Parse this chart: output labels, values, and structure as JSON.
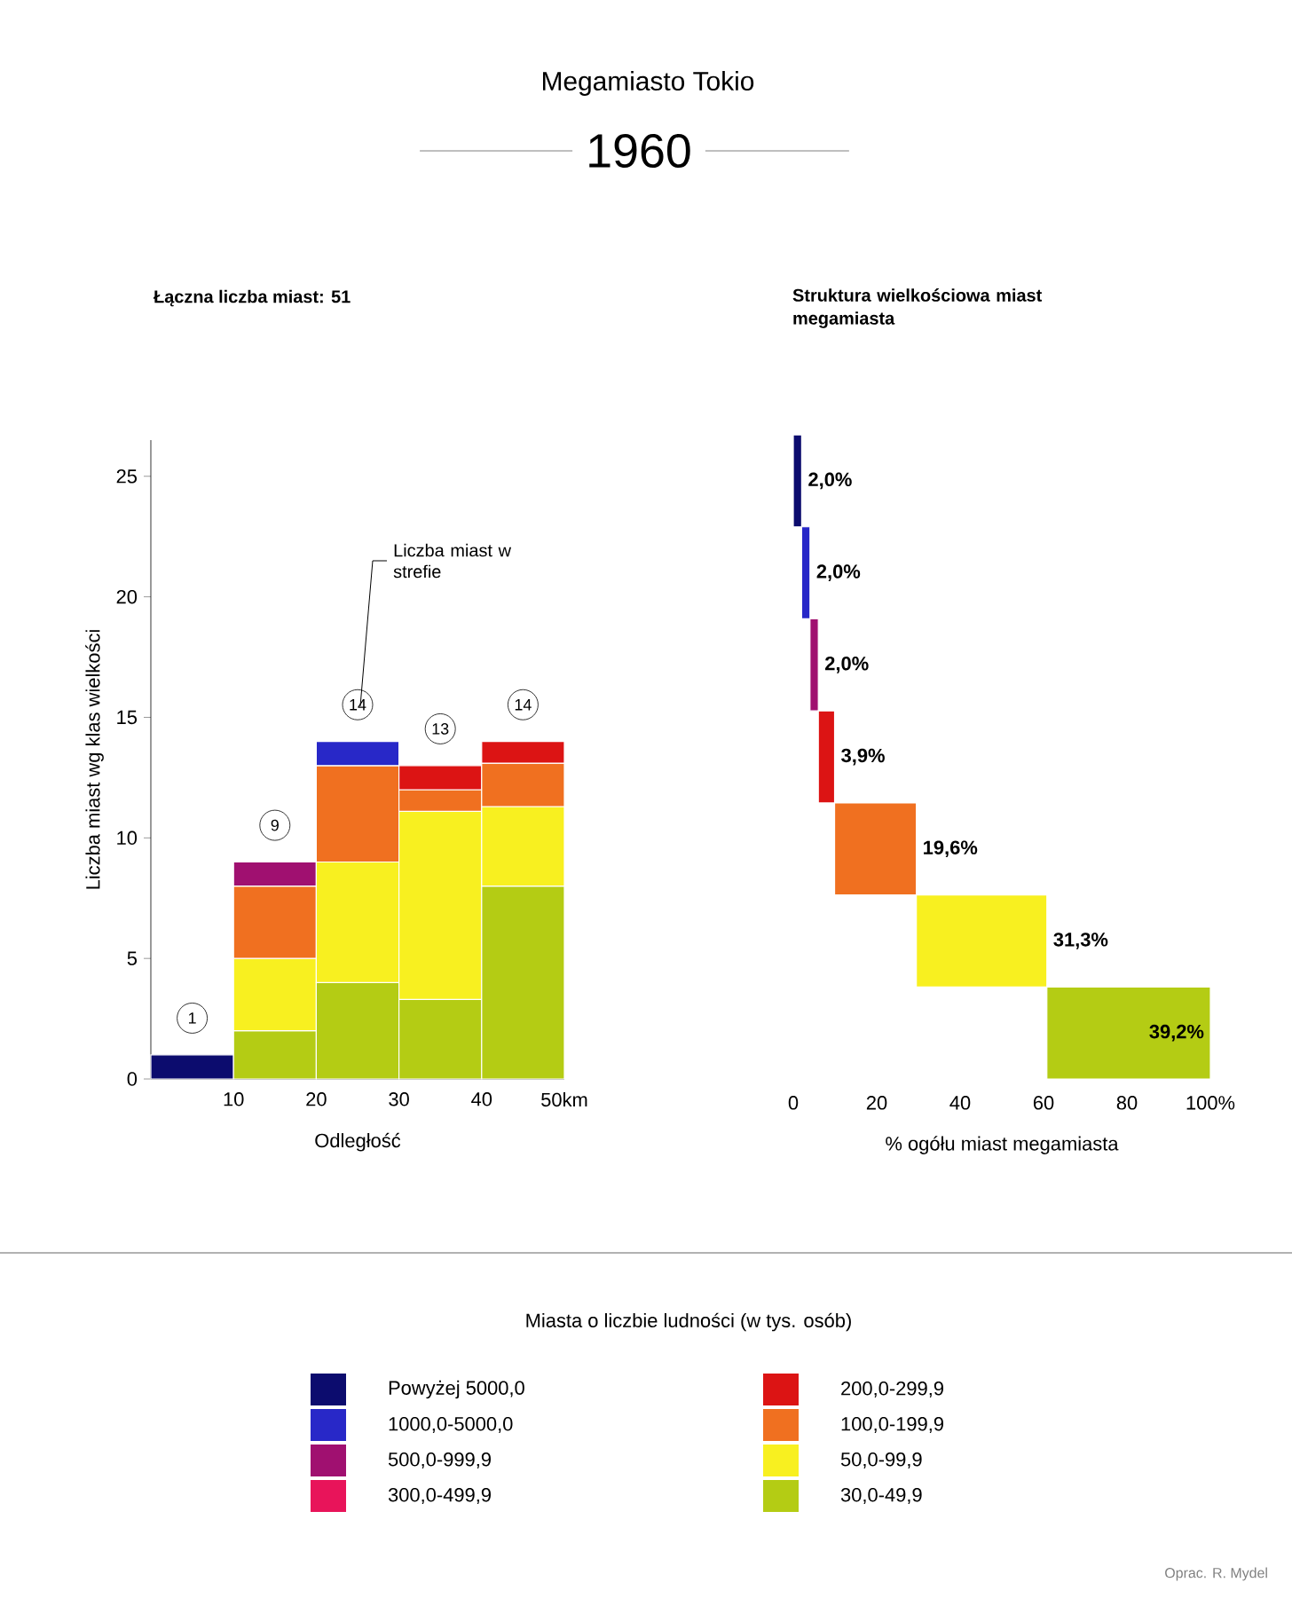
{
  "chart_data": [
    {
      "type": "other",
      "title": "Megamiasto Tokio",
      "subtitle": "1960",
      "annotations": [
        "Oprac. R. Mydel"
      ]
    },
    {
      "type": "bar",
      "title": "Łączna liczba miast: 51",
      "xlabel": "Odległość",
      "ylabel": "Liczba miast wg klas wielkości",
      "legend_title": "Miasta o liczbie ludności (w tys. osób)",
      "annotations": [
        "Liczba miast w strefie"
      ],
      "x": [
        5,
        15,
        25,
        35,
        45
      ],
      "stacked": true,
      "xlim": [
        0,
        50
      ],
      "ylim": [
        0,
        26.5
      ],
      "xticks": [
        10,
        20,
        30,
        40,
        {
          "value": 50,
          "label": "50km"
        }
      ],
      "yticks": [
        0,
        5,
        10,
        15,
        20,
        25
      ],
      "totals": [
        "1",
        "9",
        "14",
        "13",
        "14"
      ],
      "legend": "bottom",
      "series": [
        {
          "name": "30,0-49,9",
          "color": "#b4cc14",
          "values": [
            null,
            2,
            4,
            3.3,
            8
          ]
        },
        {
          "name": "50,0-99,9",
          "color": "#f8f020",
          "values": [
            null,
            3,
            5,
            7.8,
            3.3
          ]
        },
        {
          "name": "100,0-199,9",
          "color": "#f07020",
          "values": [
            null,
            3,
            4,
            0.9,
            1.8
          ]
        },
        {
          "name": "200,0-299,9",
          "color": "#dc1414",
          "values": [
            null,
            null,
            null,
            1,
            0.9
          ]
        },
        {
          "name": "300,0-499,9",
          "color": "#e8145a",
          "values": [
            null,
            null,
            null,
            null,
            null
          ]
        },
        {
          "name": "500,0-999,9",
          "color": "#a01070",
          "values": [
            null,
            1,
            null,
            null,
            null
          ]
        },
        {
          "name": "1000,0-5000,0",
          "color": "#2828c8",
          "values": [
            null,
            null,
            1,
            null,
            null
          ]
        },
        {
          "name": "Powyżej 5000,0",
          "color": "#0c0c6e",
          "values": [
            1,
            null,
            null,
            null,
            null
          ]
        }
      ]
    },
    {
      "type": "bar",
      "orientation": "horizontal",
      "title": "Struktura wielkościowa miast megamiasta",
      "xlabel": "% ogółu miast megamiasta",
      "categories": [
        null,
        null,
        null,
        null,
        null,
        null,
        null
      ],
      "values": [
        2.0,
        2.0,
        2.0,
        3.9,
        19.6,
        31.3,
        39.2
      ],
      "base": [
        0,
        2,
        4,
        6,
        9.9,
        29.5,
        60.8
      ],
      "colors": [
        "#0c0c6e",
        "#2828c8",
        "#a01070",
        "#dc1414",
        "#f07020",
        "#f8f020",
        "#b4cc14"
      ],
      "value_labels": [
        "2,0%",
        "2,0%",
        "2,0%",
        "3,9%",
        "19,6%",
        "31,3%",
        "39,2%"
      ],
      "xlim": [
        0,
        100
      ],
      "xticks": [
        0,
        20,
        40,
        60,
        80,
        {
          "value": 100,
          "label": "100%"
        }
      ],
      "tick_labels": "x"
    }
  ]
}
